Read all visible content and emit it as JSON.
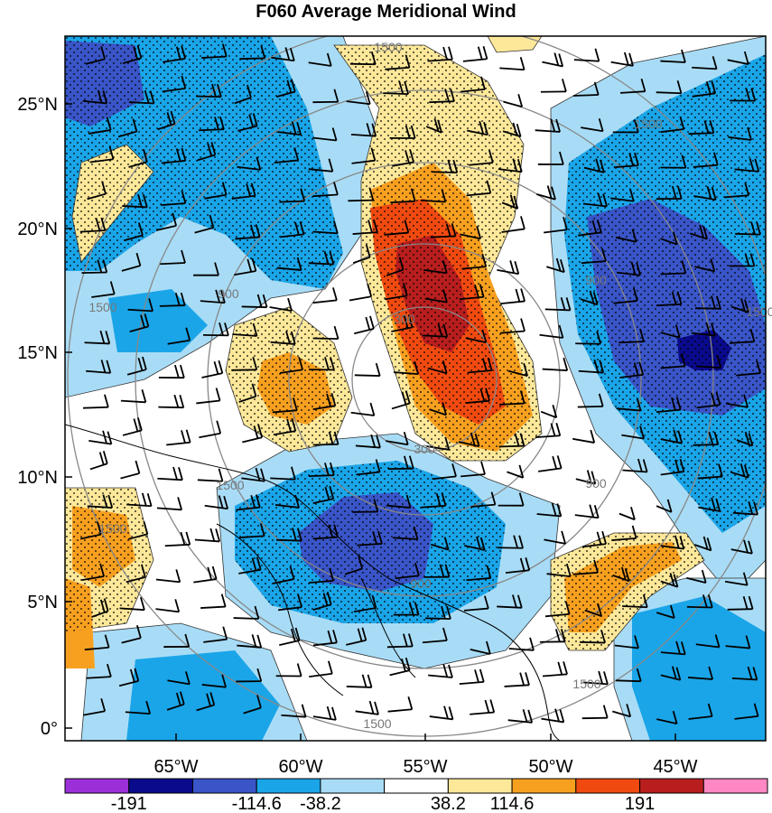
{
  "title": "F060 Average Meridional Wind",
  "lat_labels": [
    "25°N",
    "20°N",
    "15°N",
    "10°N",
    "5°N",
    "0°"
  ],
  "lon_labels": [
    "65°W",
    "60°W",
    "55°W",
    "50°W",
    "45°W"
  ],
  "colorbar": {
    "labels": [
      "-191",
      "-114.6",
      "-38.2",
      "38.2",
      "114.6",
      "191"
    ],
    "colors": [
      "#9b30d9",
      "#0a0a8c",
      "#3a55c8",
      "#1aa5e8",
      "#a8dcf6",
      "#ffffff",
      "#fde89a",
      "#f7a020",
      "#f04a10",
      "#b81e1e",
      "#ff88c4"
    ]
  },
  "range_ring_labels": [
    "300",
    "300",
    "900",
    "900",
    "900",
    "1500",
    "1500",
    "1500",
    "1500",
    "1500",
    "1500",
    "900",
    "1500",
    "1500"
  ],
  "field_colors": {
    "strong_negative": "#0a0a8c",
    "negative": "#3a55c8",
    "moderate_negative": "#1aa5e8",
    "weak_negative": "#a8dcf6",
    "weak_positive": "#fde89a",
    "moderate_positive": "#f7a020",
    "positive": "#f04a10",
    "strong_positive": "#b81e1e"
  }
}
